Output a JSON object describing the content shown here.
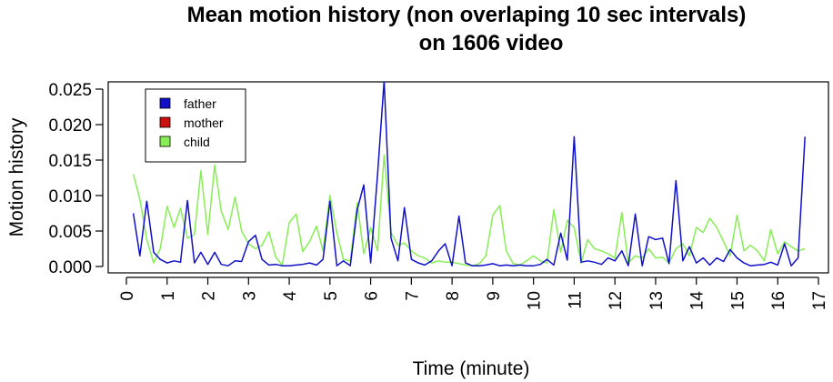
{
  "chart_data": {
    "type": "line",
    "title": "Mean motion history (non overlaping 10 sec intervals)",
    "subtitle": "on 1606 video",
    "xlabel": "Time (minute)",
    "ylabel": "Motion history",
    "xlim": [
      0,
      17.2
    ],
    "ylim": [
      0,
      0.026
    ],
    "x_ticks": [
      0,
      1,
      2,
      3,
      4,
      5,
      6,
      7,
      8,
      9,
      10,
      11,
      12,
      13,
      14,
      15,
      16,
      17
    ],
    "y_ticks": [
      0.0,
      0.005,
      0.01,
      0.015,
      0.02,
      0.025
    ],
    "y_tick_labels": [
      "0.000",
      "0.005",
      "0.010",
      "0.015",
      "0.020",
      "0.025"
    ],
    "x_tick_labels": [
      "0",
      "1",
      "2",
      "3",
      "4",
      "5",
      "6",
      "7",
      "8",
      "9",
      "10",
      "11",
      "12",
      "13",
      "14",
      "15",
      "16",
      "17"
    ],
    "legend_position": "top-left",
    "grid": false,
    "series": [
      {
        "name": "father",
        "color": "#1010c8",
        "points": [
          [
            0.17,
            0.0075
          ],
          [
            0.33,
            0.0015
          ],
          [
            0.5,
            0.0092
          ],
          [
            0.67,
            0.002
          ],
          [
            0.83,
            0.001
          ],
          [
            1.0,
            0.0005
          ],
          [
            1.17,
            0.0008
          ],
          [
            1.33,
            0.0006
          ],
          [
            1.5,
            0.0093
          ],
          [
            1.67,
            0.0005
          ],
          [
            1.83,
            0.002
          ],
          [
            2.0,
            0.0003
          ],
          [
            2.17,
            0.002
          ],
          [
            2.33,
            0.0003
          ],
          [
            2.5,
            0.0001
          ],
          [
            2.67,
            0.0008
          ],
          [
            2.83,
            0.0007
          ],
          [
            3.0,
            0.0035
          ],
          [
            3.17,
            0.0044
          ],
          [
            3.33,
            0.001
          ],
          [
            3.5,
            0.0002
          ],
          [
            3.67,
            0.0003
          ],
          [
            3.83,
            0.0001
          ],
          [
            4.0,
            0.0001
          ],
          [
            4.17,
            0.0002
          ],
          [
            4.33,
            0.0003
          ],
          [
            4.5,
            0.0005
          ],
          [
            4.67,
            0.0002
          ],
          [
            4.83,
            0.001
          ],
          [
            5.0,
            0.0092
          ],
          [
            5.17,
            0.0001
          ],
          [
            5.33,
            0.0008
          ],
          [
            5.5,
            0.0001
          ],
          [
            5.67,
            0.008
          ],
          [
            5.83,
            0.0115
          ],
          [
            6.0,
            0.0005
          ],
          [
            6.17,
            0.013
          ],
          [
            6.33,
            0.0262
          ],
          [
            6.5,
            0.004
          ],
          [
            6.67,
            0.0008
          ],
          [
            6.83,
            0.0083
          ],
          [
            7.0,
            0.001
          ],
          [
            7.17,
            0.0005
          ],
          [
            7.33,
            0.0002
          ],
          [
            7.5,
            0.0008
          ],
          [
            7.67,
            0.0022
          ],
          [
            7.83,
            0.0032
          ],
          [
            8.0,
            0.0001
          ],
          [
            8.17,
            0.0071
          ],
          [
            8.33,
            0.0005
          ],
          [
            8.5,
            0.0001
          ],
          [
            8.67,
            0.0001
          ],
          [
            8.83,
            0.0002
          ],
          [
            9.0,
            0.0004
          ],
          [
            9.17,
            0.0001
          ],
          [
            9.33,
            0.0002
          ],
          [
            9.5,
            0.0001
          ],
          [
            9.67,
            0.0002
          ],
          [
            9.83,
            0.0001
          ],
          [
            10.0,
            0.0001
          ],
          [
            10.17,
            0.0003
          ],
          [
            10.33,
            0.001
          ],
          [
            10.5,
            0.0002
          ],
          [
            10.67,
            0.0047
          ],
          [
            10.83,
            0.0009
          ],
          [
            11.0,
            0.0183
          ],
          [
            11.17,
            0.0006
          ],
          [
            11.33,
            0.0008
          ],
          [
            11.5,
            0.0006
          ],
          [
            11.67,
            0.0003
          ],
          [
            11.83,
            0.0012
          ],
          [
            12.0,
            0.0008
          ],
          [
            12.17,
            0.0022
          ],
          [
            12.33,
            0.0001
          ],
          [
            12.5,
            0.0074
          ],
          [
            12.67,
            0.0001
          ],
          [
            12.83,
            0.0042
          ],
          [
            13.0,
            0.0038
          ],
          [
            13.17,
            0.004
          ],
          [
            13.33,
            0.0004
          ],
          [
            13.5,
            0.0121
          ],
          [
            13.67,
            0.0008
          ],
          [
            13.83,
            0.0028
          ],
          [
            14.0,
            0.0005
          ],
          [
            14.17,
            0.0012
          ],
          [
            14.33,
            0.0002
          ],
          [
            14.5,
            0.0012
          ],
          [
            14.67,
            0.0007
          ],
          [
            14.83,
            0.0024
          ],
          [
            15.0,
            0.0012
          ],
          [
            15.17,
            0.0005
          ],
          [
            15.33,
            0.0001
          ],
          [
            15.5,
            0.0002
          ],
          [
            15.67,
            0.0003
          ],
          [
            15.83,
            0.0006
          ],
          [
            16.0,
            0.0002
          ],
          [
            16.17,
            0.0032
          ],
          [
            16.33,
            0.0001
          ],
          [
            16.5,
            0.0012
          ],
          [
            16.67,
            0.0183
          ]
        ]
      },
      {
        "name": "mother",
        "color": "#cc1010",
        "points": []
      },
      {
        "name": "child",
        "color": "#88ee55",
        "points": [
          [
            0.17,
            0.013
          ],
          [
            0.33,
            0.0095
          ],
          [
            0.5,
            0.0038
          ],
          [
            0.67,
            0.0005
          ],
          [
            0.83,
            0.0025
          ],
          [
            1.0,
            0.0085
          ],
          [
            1.17,
            0.0055
          ],
          [
            1.33,
            0.0082
          ],
          [
            1.5,
            0.004
          ],
          [
            1.67,
            0.0045
          ],
          [
            1.83,
            0.0135
          ],
          [
            2.0,
            0.0045
          ],
          [
            2.17,
            0.0143
          ],
          [
            2.33,
            0.0078
          ],
          [
            2.5,
            0.0052
          ],
          [
            2.67,
            0.0098
          ],
          [
            2.83,
            0.005
          ],
          [
            3.0,
            0.0032
          ],
          [
            3.17,
            0.0025
          ],
          [
            3.33,
            0.003
          ],
          [
            3.5,
            0.0049
          ],
          [
            3.67,
            0.0013
          ],
          [
            3.83,
            0.0002
          ],
          [
            4.0,
            0.0062
          ],
          [
            4.17,
            0.0074
          ],
          [
            4.33,
            0.0021
          ],
          [
            4.5,
            0.0035
          ],
          [
            4.67,
            0.0057
          ],
          [
            4.83,
            0.0022
          ],
          [
            5.0,
            0.01
          ],
          [
            5.17,
            0.0048
          ],
          [
            5.33,
            0.001
          ],
          [
            5.5,
            0.0008
          ],
          [
            5.67,
            0.009
          ],
          [
            5.83,
            0.0018
          ],
          [
            6.0,
            0.0055
          ],
          [
            6.17,
            0.0022
          ],
          [
            6.33,
            0.0157
          ],
          [
            6.5,
            0.0048
          ],
          [
            6.67,
            0.003
          ],
          [
            6.83,
            0.0033
          ],
          [
            7.0,
            0.0022
          ],
          [
            7.17,
            0.0015
          ],
          [
            7.33,
            0.0012
          ],
          [
            7.5,
            0.0005
          ],
          [
            7.67,
            0.0008
          ],
          [
            7.83,
            0.0006
          ],
          [
            8.0,
            0.0006
          ],
          [
            8.17,
            0.0004
          ],
          [
            8.33,
            0.0002
          ],
          [
            8.5,
            0.0001
          ],
          [
            8.67,
            0.0004
          ],
          [
            8.83,
            0.0015
          ],
          [
            9.0,
            0.0072
          ],
          [
            9.17,
            0.0086
          ],
          [
            9.33,
            0.0022
          ],
          [
            9.5,
            0.0004
          ],
          [
            9.67,
            0.0002
          ],
          [
            9.83,
            0.0008
          ],
          [
            10.0,
            0.0015
          ],
          [
            10.17,
            0.0008
          ],
          [
            10.33,
            0.0005
          ],
          [
            10.5,
            0.008
          ],
          [
            10.67,
            0.002
          ],
          [
            10.83,
            0.0065
          ],
          [
            11.0,
            0.0055
          ],
          [
            11.17,
            0.0005
          ],
          [
            11.33,
            0.0038
          ],
          [
            11.5,
            0.0025
          ],
          [
            11.67,
            0.0022
          ],
          [
            11.83,
            0.0018
          ],
          [
            12.0,
            0.0012
          ],
          [
            12.17,
            0.0076
          ],
          [
            12.33,
            0.0005
          ],
          [
            12.5,
            0.0015
          ],
          [
            12.67,
            0.0012
          ],
          [
            12.83,
            0.0025
          ],
          [
            13.0,
            0.0012
          ],
          [
            13.17,
            0.0013
          ],
          [
            13.33,
            0.0005
          ],
          [
            13.5,
            0.0025
          ],
          [
            13.67,
            0.0032
          ],
          [
            13.83,
            0.0015
          ],
          [
            14.0,
            0.0055
          ],
          [
            14.17,
            0.0048
          ],
          [
            14.33,
            0.0068
          ],
          [
            14.5,
            0.0055
          ],
          [
            14.67,
            0.0035
          ],
          [
            14.83,
            0.0015
          ],
          [
            15.0,
            0.0072
          ],
          [
            15.17,
            0.0022
          ],
          [
            15.33,
            0.003
          ],
          [
            15.5,
            0.0022
          ],
          [
            15.67,
            0.0008
          ],
          [
            15.83,
            0.0052
          ],
          [
            16.0,
            0.0018
          ],
          [
            16.17,
            0.0035
          ],
          [
            16.33,
            0.0028
          ],
          [
            16.5,
            0.0022
          ],
          [
            16.67,
            0.0025
          ]
        ]
      }
    ]
  }
}
